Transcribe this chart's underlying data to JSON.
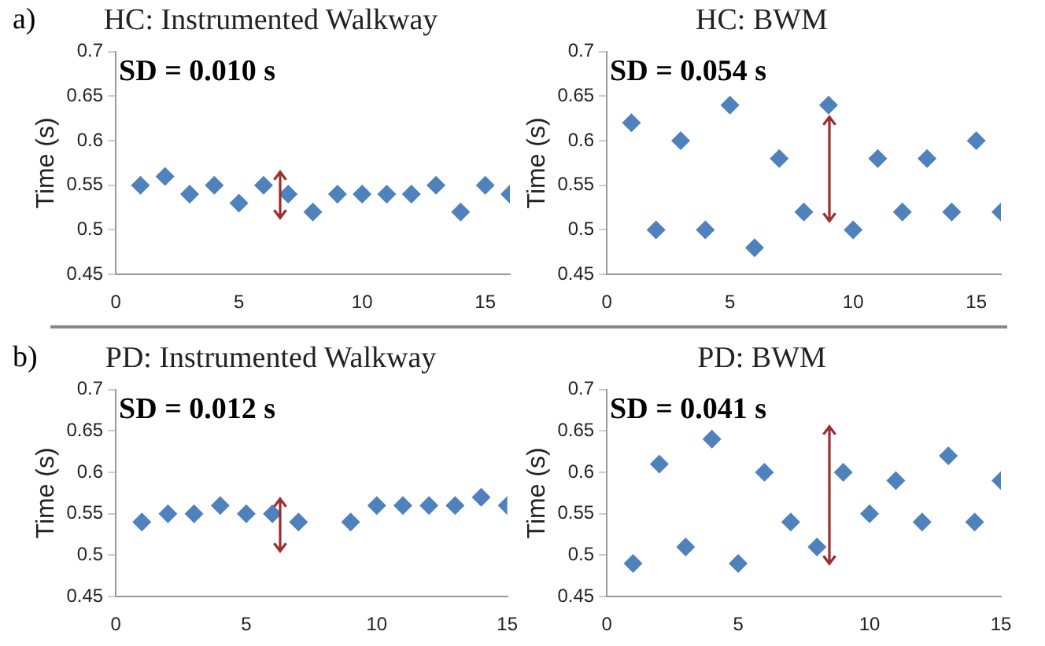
{
  "chart_data": [
    {
      "type": "scatter",
      "title": "HC: Instrumented Walkway",
      "ylabel": "Time (s)",
      "annotations": [
        "a)",
        "SD = 0.010 s"
      ],
      "marker": "diamond",
      "grid": false,
      "legend": false,
      "xlim": [
        0,
        16
      ],
      "xticks": [
        0,
        5,
        10,
        15
      ],
      "ylim": [
        0.45,
        0.7
      ],
      "yticks": [
        0.45,
        0.5,
        0.55,
        0.6,
        0.65,
        0.7
      ],
      "series": [
        {
          "color": "#4f81bd",
          "x": [
            1,
            2,
            3,
            4,
            5,
            6,
            7,
            8,
            9,
            10,
            11,
            12,
            13,
            14,
            15,
            16
          ],
          "values": [
            0.55,
            0.56,
            0.54,
            0.55,
            0.53,
            0.55,
            0.54,
            0.52,
            0.54,
            0.54,
            0.54,
            0.54,
            0.55,
            0.52,
            0.55,
            0.54
          ]
        }
      ]
    },
    {
      "type": "scatter",
      "title": "HC: BWM",
      "ylabel": "Time (s)",
      "annotations": [
        "SD = 0.054 s"
      ],
      "marker": "diamond",
      "grid": false,
      "legend": false,
      "xlim": [
        0,
        16
      ],
      "xticks": [
        0,
        5,
        10,
        15
      ],
      "ylim": [
        0.45,
        0.7
      ],
      "yticks": [
        0.45,
        0.5,
        0.55,
        0.6,
        0.65,
        0.7
      ],
      "series": [
        {
          "color": "#4f81bd",
          "x": [
            1,
            2,
            3,
            4,
            5,
            6,
            7,
            8,
            9,
            10,
            11,
            12,
            13,
            14,
            15,
            16
          ],
          "values": [
            0.62,
            0.5,
            0.6,
            0.5,
            0.64,
            0.48,
            0.58,
            0.52,
            0.64,
            0.5,
            0.58,
            0.52,
            0.58,
            0.52,
            0.6,
            0.52
          ]
        }
      ]
    },
    {
      "type": "scatter",
      "title": "PD: Instrumented Walkway",
      "ylabel": "Time (s)",
      "annotations": [
        "b)",
        "SD = 0.012 s"
      ],
      "marker": "diamond",
      "grid": false,
      "legend": false,
      "xlim": [
        0,
        15
      ],
      "xticks": [
        0,
        5,
        10,
        15
      ],
      "ylim": [
        0.45,
        0.7
      ],
      "yticks": [
        0.45,
        0.5,
        0.55,
        0.6,
        0.65,
        0.7
      ],
      "series": [
        {
          "color": "#4f81bd",
          "x": [
            1,
            2,
            3,
            4,
            5,
            6,
            7,
            9,
            10,
            11,
            12,
            13,
            14,
            15
          ],
          "values": [
            0.54,
            0.55,
            0.55,
            0.56,
            0.55,
            0.55,
            0.54,
            0.54,
            0.56,
            0.56,
            0.56,
            0.56,
            0.57,
            0.56
          ]
        }
      ]
    },
    {
      "type": "scatter",
      "title": "PD: BWM",
      "ylabel": "Time (s)",
      "annotations": [
        "SD = 0.041 s"
      ],
      "marker": "diamond",
      "grid": false,
      "legend": false,
      "xlim": [
        0,
        15
      ],
      "xticks": [
        0,
        5,
        10,
        15
      ],
      "ylim": [
        0.45,
        0.7
      ],
      "yticks": [
        0.45,
        0.5,
        0.55,
        0.6,
        0.65,
        0.7
      ],
      "series": [
        {
          "color": "#4f81bd",
          "x": [
            1,
            2,
            3,
            4,
            5,
            6,
            7,
            8,
            9,
            10,
            11,
            12,
            13,
            14,
            15
          ],
          "values": [
            0.49,
            0.61,
            0.51,
            0.64,
            0.49,
            0.6,
            0.54,
            0.51,
            0.6,
            0.55,
            0.59,
            0.54,
            0.62,
            0.54,
            0.59
          ]
        }
      ]
    }
  ]
}
